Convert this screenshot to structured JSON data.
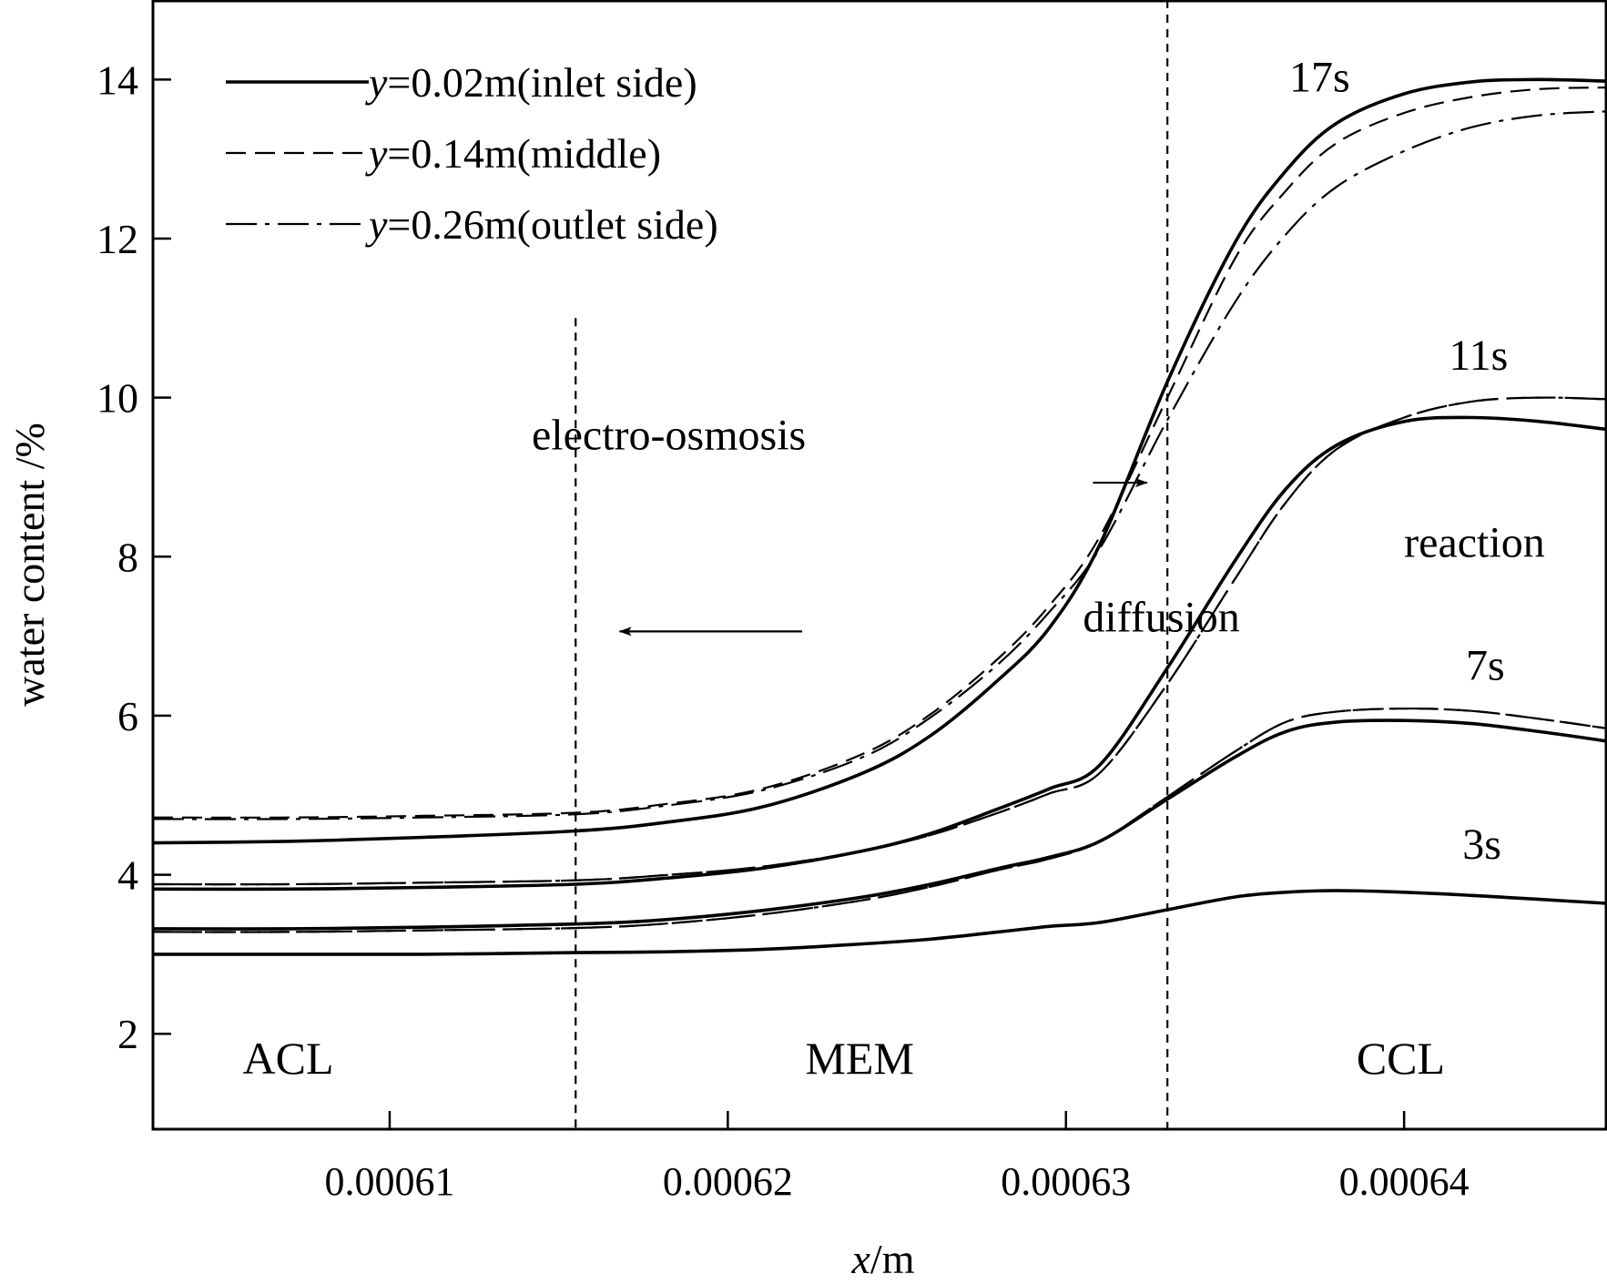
{
  "chart_data": {
    "type": "line",
    "title": "",
    "xlabel_var": "x",
    "xlabel_unit": "/m",
    "ylabel": "water content /%",
    "xlim": [
      0.000603,
      0.000646
    ],
    "ylim": [
      0.8,
      15
    ],
    "x_ticks": [
      0.00061,
      0.00062,
      0.00063,
      0.00064
    ],
    "x_tick_labels": [
      "0.00061",
      "0.00062",
      "0.00063",
      "0.00064"
    ],
    "y_ticks": [
      2,
      4,
      6,
      8,
      10,
      12,
      14
    ],
    "y_tick_labels": [
      "2",
      "4",
      "6",
      "8",
      "10",
      "12",
      "14"
    ],
    "boundaries": [
      0.0006155,
      0.000633
    ],
    "boundary_top": 11,
    "regions": [
      {
        "label": "ACL",
        "x": 0.000607
      },
      {
        "label": "MEM",
        "x": 0.0006239
      },
      {
        "label": "CCL",
        "x": 0.0006399
      }
    ],
    "legend": [
      {
        "var": "y",
        "rest": "=0.02m(inlet side)",
        "style": "solid"
      },
      {
        "var": "y",
        "rest": "=0.14m(middle)",
        "style": "dashed"
      },
      {
        "var": "y",
        "rest": "=0.26m(outlet side)",
        "style": "dashdot"
      }
    ],
    "annotations": [
      {
        "text": "electro-osmosis",
        "x": 0.0006142,
        "y": 9.35,
        "arrow_from": [
          0.0006308,
          8.93
        ],
        "arrow_to": [
          0.0006324,
          8.93
        ]
      },
      {
        "text": "diffusion",
        "x": 0.0006305,
        "y": 7.06,
        "arrow_from": [
          0.0006222,
          7.06
        ],
        "arrow_to": [
          0.0006168,
          7.06
        ]
      },
      {
        "text": "reaction",
        "x": 0.00064,
        "y": 8.0
      }
    ],
    "time_labels": [
      {
        "text": "17s",
        "x": 0.0006375,
        "y": 13.85
      },
      {
        "text": "11s",
        "x": 0.0006422,
        "y": 10.35
      },
      {
        "text": "7s",
        "x": 0.0006424,
        "y": 6.45
      },
      {
        "text": "3s",
        "x": 0.0006423,
        "y": 4.2
      }
    ],
    "x": [
      0.000603,
      0.000607,
      0.000611,
      0.0006155,
      0.000618,
      0.000621,
      0.000624,
      0.000626,
      0.000628,
      0.0006295,
      0.000631,
      0.000633,
      0.000635,
      0.0006365,
      0.000638,
      0.00064,
      0.000642,
      0.000644,
      0.000646
    ],
    "series": [
      {
        "name": "3s",
        "y_label": "y=0.02m(inlet side)",
        "style": "solid",
        "values": [
          3.0,
          3.0,
          3.0,
          3.02,
          3.03,
          3.06,
          3.13,
          3.19,
          3.28,
          3.35,
          3.4,
          3.56,
          3.72,
          3.78,
          3.8,
          3.78,
          3.74,
          3.69,
          3.64
        ]
      },
      {
        "name": "3s",
        "y_label": "y=0.14m(middle)",
        "style": "dashed",
        "values": [
          3.0,
          3.0,
          3.0,
          3.02,
          3.03,
          3.06,
          3.13,
          3.19,
          3.28,
          3.35,
          3.4,
          3.56,
          3.72,
          3.78,
          3.8,
          3.78,
          3.74,
          3.69,
          3.64
        ]
      },
      {
        "name": "3s",
        "y_label": "y=0.26m(outlet side)",
        "style": "dashdot",
        "values": [
          3.0,
          3.0,
          3.0,
          3.02,
          3.03,
          3.06,
          3.13,
          3.19,
          3.28,
          3.35,
          3.4,
          3.56,
          3.72,
          3.78,
          3.8,
          3.78,
          3.74,
          3.69,
          3.64
        ]
      },
      {
        "name": "7s",
        "y_label": "y=0.02m(inlet side)",
        "style": "solid",
        "values": [
          3.32,
          3.32,
          3.34,
          3.38,
          3.43,
          3.55,
          3.72,
          3.88,
          4.08,
          4.22,
          4.42,
          4.95,
          5.48,
          5.8,
          5.92,
          5.94,
          5.9,
          5.8,
          5.68
        ]
      },
      {
        "name": "7s",
        "y_label": "y=0.14m(middle)",
        "style": "dashed",
        "values": [
          3.28,
          3.28,
          3.3,
          3.33,
          3.38,
          3.5,
          3.68,
          3.85,
          4.06,
          4.2,
          4.42,
          4.98,
          5.55,
          5.92,
          6.05,
          6.09,
          6.06,
          5.96,
          5.84
        ]
      },
      {
        "name": "7s",
        "y_label": "y=0.26m(outlet side)",
        "style": "dashdot",
        "values": [
          3.28,
          3.28,
          3.3,
          3.33,
          3.38,
          3.5,
          3.68,
          3.85,
          4.06,
          4.2,
          4.42,
          4.98,
          5.55,
          5.92,
          6.05,
          6.09,
          6.06,
          5.96,
          5.84
        ]
      },
      {
        "name": "11s",
        "y_label": "y=0.02m(inlet side)",
        "style": "solid",
        "values": [
          3.82,
          3.82,
          3.84,
          3.88,
          3.95,
          4.08,
          4.3,
          4.52,
          4.83,
          5.08,
          5.38,
          6.6,
          7.95,
          8.85,
          9.4,
          9.7,
          9.75,
          9.7,
          9.6
        ]
      },
      {
        "name": "11s",
        "y_label": "y=0.14m(middle)",
        "style": "dashed",
        "values": [
          3.88,
          3.88,
          3.9,
          3.93,
          3.99,
          4.1,
          4.3,
          4.5,
          4.78,
          5.02,
          5.28,
          6.4,
          7.72,
          8.68,
          9.35,
          9.75,
          9.95,
          10.0,
          9.98
        ]
      },
      {
        "name": "11s",
        "y_label": "y=0.26m(outlet side)",
        "style": "dashdot",
        "values": [
          3.88,
          3.88,
          3.9,
          3.93,
          3.99,
          4.1,
          4.3,
          4.5,
          4.78,
          5.02,
          5.28,
          6.4,
          7.72,
          8.68,
          9.35,
          9.75,
          9.95,
          10.0,
          9.98
        ]
      },
      {
        "name": "17s",
        "y_label": "y=0.02m(inlet side)",
        "style": "solid",
        "values": [
          4.4,
          4.42,
          4.47,
          4.55,
          4.65,
          4.85,
          5.28,
          5.75,
          6.45,
          7.1,
          8.15,
          10.2,
          11.95,
          12.85,
          13.45,
          13.82,
          13.97,
          14.0,
          13.98
        ]
      },
      {
        "name": "17s",
        "y_label": "y=0.14m(middle)",
        "style": "dashed",
        "values": [
          4.72,
          4.72,
          4.74,
          4.78,
          4.88,
          5.08,
          5.52,
          6.02,
          6.72,
          7.38,
          8.25,
          10.0,
          11.75,
          12.6,
          13.2,
          13.58,
          13.78,
          13.88,
          13.9
        ]
      },
      {
        "name": "17s",
        "y_label": "y=0.26m(outlet side)",
        "style": "dashdot",
        "values": [
          4.7,
          4.7,
          4.72,
          4.76,
          4.86,
          5.06,
          5.48,
          5.98,
          6.65,
          7.3,
          8.1,
          9.72,
          11.2,
          12.05,
          12.65,
          13.1,
          13.4,
          13.55,
          13.6
        ]
      }
    ]
  }
}
